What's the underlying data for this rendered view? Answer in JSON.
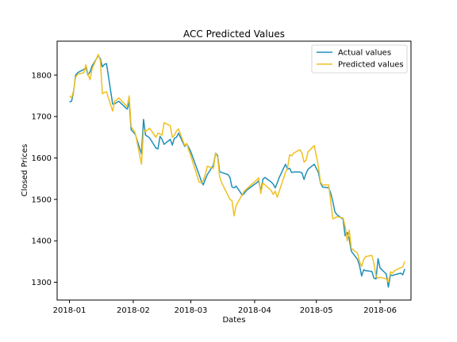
{
  "chart_data": {
    "type": "line",
    "title": "ACC Predicted Values",
    "xlabel": "Dates",
    "ylabel": "Closed Prices",
    "xlim": [
      "2017-12-26",
      "2018-06-16"
    ],
    "ylim": [
      1257,
      1882
    ],
    "x_ticks": [
      "2018-01-01",
      "2018-02-01",
      "2018-03-01",
      "2018-04-01",
      "2018-05-01",
      "2018-06-01"
    ],
    "x_tick_labels": [
      "2018-01",
      "2018-02",
      "2018-03",
      "2018-04",
      "2018-05",
      "2018-06"
    ],
    "y_ticks": [
      1300,
      1400,
      1500,
      1600,
      1700,
      1800
    ],
    "y_tick_labels": [
      "1300",
      "1400",
      "1500",
      "1600",
      "1700",
      "1800"
    ],
    "grid": false,
    "legend_position": "top-right",
    "series": [
      {
        "name": "Actual values",
        "color": "#1f8fb8",
        "points": [
          [
            "2018-01-01",
            1735
          ],
          [
            "2018-01-02",
            1737
          ],
          [
            "2018-01-03",
            1760
          ],
          [
            "2018-01-04",
            1800
          ],
          [
            "2018-01-05",
            1806
          ],
          [
            "2018-01-08",
            1814
          ],
          [
            "2018-01-09",
            1818
          ],
          [
            "2018-01-10",
            1800
          ],
          [
            "2018-01-11",
            1808
          ],
          [
            "2018-01-12",
            1822
          ],
          [
            "2018-01-15",
            1847
          ],
          [
            "2018-01-16",
            1840
          ],
          [
            "2018-01-17",
            1820
          ],
          [
            "2018-01-18",
            1826
          ],
          [
            "2018-01-19",
            1828
          ],
          [
            "2018-01-22",
            1730
          ],
          [
            "2018-01-23",
            1731
          ],
          [
            "2018-01-24",
            1734
          ],
          [
            "2018-01-25",
            1737
          ],
          [
            "2018-01-29",
            1718
          ],
          [
            "2018-01-30",
            1735
          ],
          [
            "2018-01-31",
            1668
          ],
          [
            "2018-02-01",
            1663
          ],
          [
            "2018-02-02",
            1657
          ],
          [
            "2018-02-05",
            1610
          ],
          [
            "2018-02-06",
            1693
          ],
          [
            "2018-02-07",
            1655
          ],
          [
            "2018-02-08",
            1652
          ],
          [
            "2018-02-09",
            1648
          ],
          [
            "2018-02-12",
            1624
          ],
          [
            "2018-02-13",
            1622
          ],
          [
            "2018-02-14",
            1652
          ],
          [
            "2018-02-15",
            1645
          ],
          [
            "2018-02-16",
            1633
          ],
          [
            "2018-02-19",
            1645
          ],
          [
            "2018-02-20",
            1631
          ],
          [
            "2018-02-21",
            1648
          ],
          [
            "2018-02-22",
            1650
          ],
          [
            "2018-02-23",
            1660
          ],
          [
            "2018-02-26",
            1628
          ],
          [
            "2018-02-27",
            1634
          ],
          [
            "2018-02-28",
            1625
          ],
          [
            "2018-03-01",
            1615
          ],
          [
            "2018-03-05",
            1560
          ],
          [
            "2018-03-06",
            1545
          ],
          [
            "2018-03-07",
            1535
          ],
          [
            "2018-03-08",
            1548
          ],
          [
            "2018-03-09",
            1560
          ],
          [
            "2018-03-12",
            1583
          ],
          [
            "2018-03-13",
            1612
          ],
          [
            "2018-03-14",
            1606
          ],
          [
            "2018-03-15",
            1567
          ],
          [
            "2018-03-16",
            1565
          ],
          [
            "2018-03-19",
            1560
          ],
          [
            "2018-03-20",
            1553
          ],
          [
            "2018-03-21",
            1530
          ],
          [
            "2018-03-22",
            1528
          ],
          [
            "2018-03-23",
            1532
          ],
          [
            "2018-03-26",
            1510
          ],
          [
            "2018-03-27",
            1515
          ],
          [
            "2018-03-28",
            1522
          ],
          [
            "2018-04-02",
            1540
          ],
          [
            "2018-04-03",
            1545
          ],
          [
            "2018-04-04",
            1520
          ],
          [
            "2018-04-05",
            1548
          ],
          [
            "2018-04-06",
            1553
          ],
          [
            "2018-04-09",
            1542
          ],
          [
            "2018-04-10",
            1537
          ],
          [
            "2018-04-11",
            1528
          ],
          [
            "2018-04-12",
            1540
          ],
          [
            "2018-04-13",
            1553
          ],
          [
            "2018-04-16",
            1585
          ],
          [
            "2018-04-17",
            1573
          ],
          [
            "2018-04-18",
            1575
          ],
          [
            "2018-04-19",
            1565
          ],
          [
            "2018-04-20",
            1566
          ],
          [
            "2018-04-23",
            1566
          ],
          [
            "2018-04-24",
            1564
          ],
          [
            "2018-04-25",
            1548
          ],
          [
            "2018-04-26",
            1563
          ],
          [
            "2018-04-27",
            1573
          ],
          [
            "2018-04-30",
            1585
          ],
          [
            "2018-05-02",
            1565
          ],
          [
            "2018-05-03",
            1540
          ],
          [
            "2018-05-04",
            1530
          ],
          [
            "2018-05-07",
            1528
          ],
          [
            "2018-05-08",
            1515
          ],
          [
            "2018-05-09",
            1495
          ],
          [
            "2018-05-10",
            1470
          ],
          [
            "2018-05-11",
            1463
          ],
          [
            "2018-05-14",
            1452
          ],
          [
            "2018-05-15",
            1412
          ],
          [
            "2018-05-16",
            1420
          ],
          [
            "2018-05-17",
            1404
          ],
          [
            "2018-05-18",
            1375
          ],
          [
            "2018-05-21",
            1355
          ],
          [
            "2018-05-22",
            1340
          ],
          [
            "2018-05-23",
            1315
          ],
          [
            "2018-05-24",
            1330
          ],
          [
            "2018-05-25",
            1328
          ],
          [
            "2018-05-28",
            1326
          ],
          [
            "2018-05-29",
            1310
          ],
          [
            "2018-05-30",
            1308
          ],
          [
            "2018-05-31",
            1357
          ],
          [
            "2018-06-01",
            1334
          ],
          [
            "2018-06-04",
            1320
          ],
          [
            "2018-06-05",
            1288
          ],
          [
            "2018-06-06",
            1318
          ],
          [
            "2018-06-07",
            1316
          ],
          [
            "2018-06-08",
            1318
          ],
          [
            "2018-06-11",
            1322
          ],
          [
            "2018-06-12",
            1318
          ],
          [
            "2018-06-13",
            1332
          ]
        ]
      },
      {
        "name": "Predicted values",
        "color": "#f0c020",
        "points": [
          [
            "2018-01-01",
            1750
          ],
          [
            "2018-01-02",
            1745
          ],
          [
            "2018-01-03",
            1762
          ],
          [
            "2018-01-04",
            1795
          ],
          [
            "2018-01-05",
            1802
          ],
          [
            "2018-01-08",
            1806
          ],
          [
            "2018-01-09",
            1825
          ],
          [
            "2018-01-10",
            1803
          ],
          [
            "2018-01-11",
            1789
          ],
          [
            "2018-01-12",
            1815
          ],
          [
            "2018-01-15",
            1850
          ],
          [
            "2018-01-16",
            1835
          ],
          [
            "2018-01-17",
            1755
          ],
          [
            "2018-01-18",
            1758
          ],
          [
            "2018-01-19",
            1760
          ],
          [
            "2018-01-22",
            1713
          ],
          [
            "2018-01-23",
            1738
          ],
          [
            "2018-01-24",
            1740
          ],
          [
            "2018-01-25",
            1745
          ],
          [
            "2018-01-29",
            1724
          ],
          [
            "2018-01-30",
            1750
          ],
          [
            "2018-01-31",
            1676
          ],
          [
            "2018-02-01",
            1668
          ],
          [
            "2018-02-02",
            1660
          ],
          [
            "2018-02-05",
            1585
          ],
          [
            "2018-02-06",
            1668
          ],
          [
            "2018-02-07",
            1664
          ],
          [
            "2018-02-08",
            1668
          ],
          [
            "2018-02-09",
            1672
          ],
          [
            "2018-02-12",
            1650
          ],
          [
            "2018-02-13",
            1660
          ],
          [
            "2018-02-14",
            1658
          ],
          [
            "2018-02-15",
            1655
          ],
          [
            "2018-02-16",
            1685
          ],
          [
            "2018-02-19",
            1678
          ],
          [
            "2018-02-20",
            1650
          ],
          [
            "2018-02-21",
            1655
          ],
          [
            "2018-02-22",
            1665
          ],
          [
            "2018-02-23",
            1670
          ],
          [
            "2018-02-26",
            1630
          ],
          [
            "2018-02-27",
            1635
          ],
          [
            "2018-02-28",
            1618
          ],
          [
            "2018-03-01",
            1605
          ],
          [
            "2018-03-05",
            1542
          ],
          [
            "2018-03-06",
            1540
          ],
          [
            "2018-03-07",
            1545
          ],
          [
            "2018-03-08",
            1560
          ],
          [
            "2018-03-09",
            1580
          ],
          [
            "2018-03-12",
            1575
          ],
          [
            "2018-03-13",
            1612
          ],
          [
            "2018-03-14",
            1602
          ],
          [
            "2018-03-15",
            1555
          ],
          [
            "2018-03-16",
            1540
          ],
          [
            "2018-03-19",
            1510
          ],
          [
            "2018-03-20",
            1500
          ],
          [
            "2018-03-21",
            1497
          ],
          [
            "2018-03-22",
            1460
          ],
          [
            "2018-03-23",
            1485
          ],
          [
            "2018-03-26",
            1512
          ],
          [
            "2018-03-27",
            1520
          ],
          [
            "2018-03-28",
            1525
          ],
          [
            "2018-04-02",
            1547
          ],
          [
            "2018-04-03",
            1552
          ],
          [
            "2018-04-04",
            1514
          ],
          [
            "2018-04-05",
            1540
          ],
          [
            "2018-04-06",
            1535
          ],
          [
            "2018-04-09",
            1522
          ],
          [
            "2018-04-10",
            1512
          ],
          [
            "2018-04-11",
            1520
          ],
          [
            "2018-04-12",
            1505
          ],
          [
            "2018-04-13",
            1520
          ],
          [
            "2018-04-16",
            1565
          ],
          [
            "2018-04-17",
            1575
          ],
          [
            "2018-04-18",
            1608
          ],
          [
            "2018-04-19",
            1605
          ],
          [
            "2018-04-20",
            1612
          ],
          [
            "2018-04-23",
            1620
          ],
          [
            "2018-04-24",
            1612
          ],
          [
            "2018-04-25",
            1590
          ],
          [
            "2018-04-26",
            1595
          ],
          [
            "2018-04-27",
            1615
          ],
          [
            "2018-04-30",
            1630
          ],
          [
            "2018-05-02",
            1580
          ],
          [
            "2018-05-03",
            1542
          ],
          [
            "2018-05-04",
            1535
          ],
          [
            "2018-05-07",
            1535
          ],
          [
            "2018-05-08",
            1495
          ],
          [
            "2018-05-09",
            1453
          ],
          [
            "2018-05-10",
            1455
          ],
          [
            "2018-05-11",
            1458
          ],
          [
            "2018-05-14",
            1455
          ],
          [
            "2018-05-15",
            1435
          ],
          [
            "2018-05-16",
            1400
          ],
          [
            "2018-05-17",
            1426
          ],
          [
            "2018-05-18",
            1382
          ],
          [
            "2018-05-21",
            1370
          ],
          [
            "2018-05-22",
            1350
          ],
          [
            "2018-05-23",
            1338
          ],
          [
            "2018-05-24",
            1355
          ],
          [
            "2018-05-25",
            1362
          ],
          [
            "2018-05-28",
            1365
          ],
          [
            "2018-05-29",
            1345
          ],
          [
            "2018-05-30",
            1315
          ],
          [
            "2018-05-31",
            1310
          ],
          [
            "2018-06-01",
            1312
          ],
          [
            "2018-06-04",
            1308
          ],
          [
            "2018-06-05",
            1300
          ],
          [
            "2018-06-06",
            1325
          ],
          [
            "2018-06-07",
            1322
          ],
          [
            "2018-06-08",
            1328
          ],
          [
            "2018-06-11",
            1335
          ],
          [
            "2018-06-12",
            1337
          ],
          [
            "2018-06-13",
            1350
          ]
        ]
      }
    ]
  }
}
